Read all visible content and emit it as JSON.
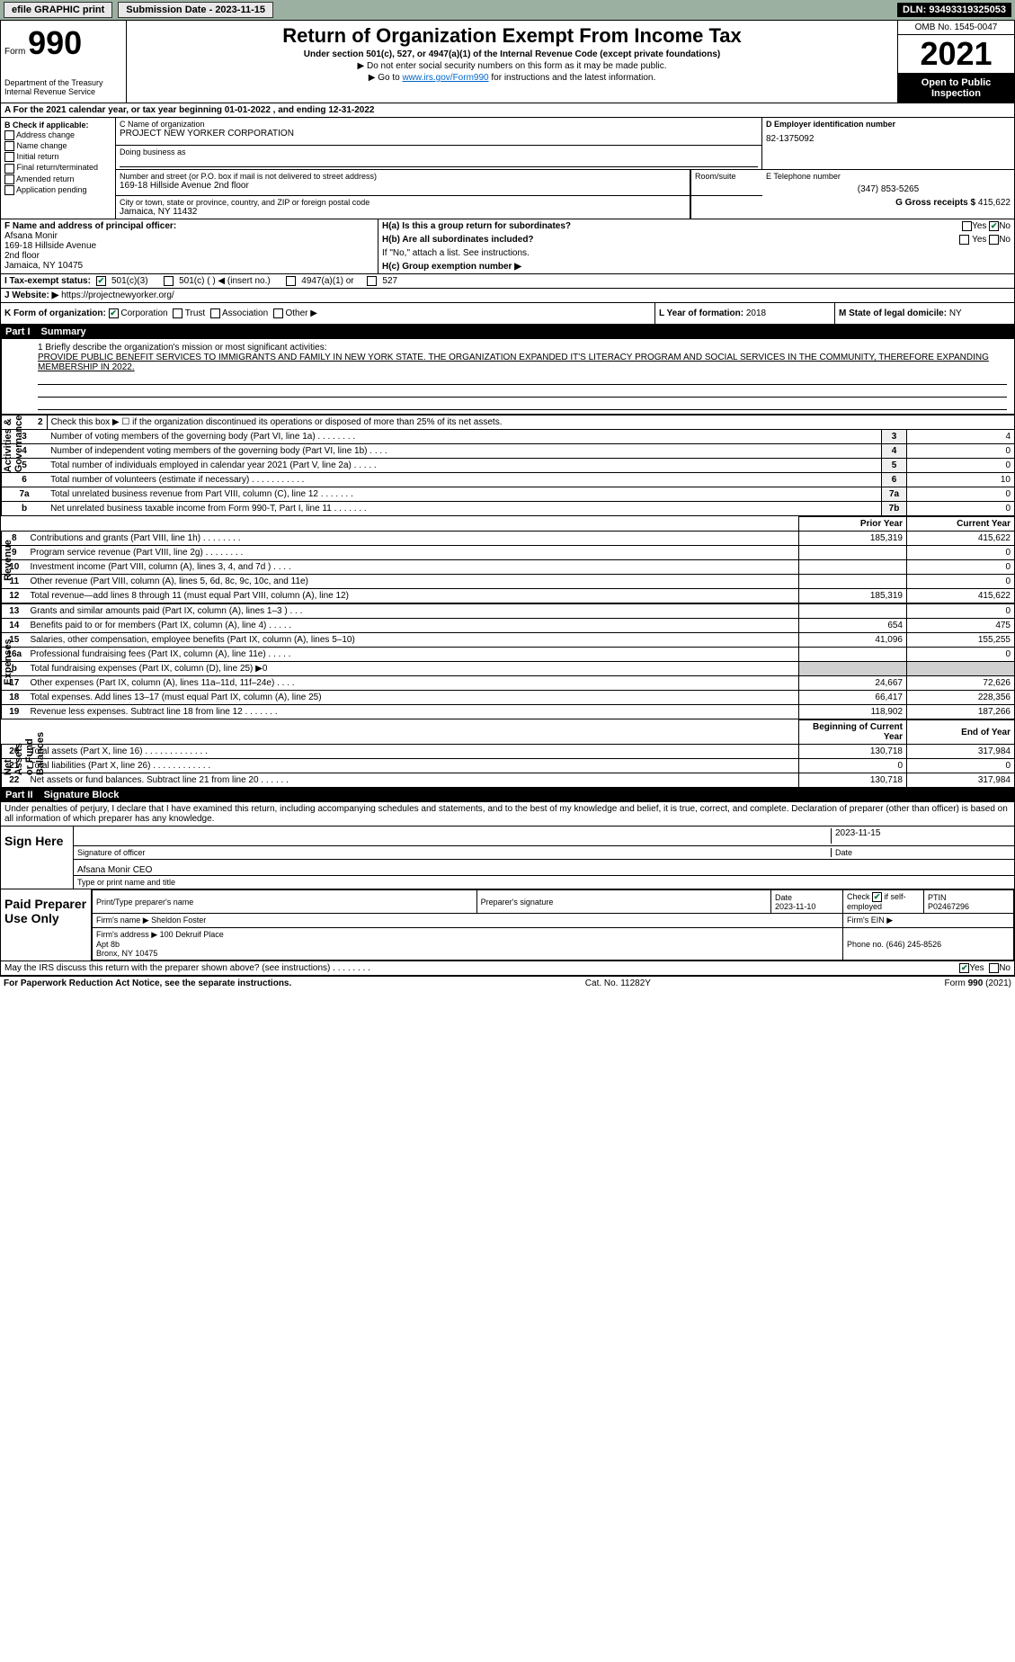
{
  "topbar": {
    "efile": "efile GRAPHIC print",
    "subdate_lbl": "Submission Date - 2023-11-15",
    "dln": "DLN: 93493319325053"
  },
  "header": {
    "form_prefix": "Form",
    "form_no": "990",
    "title": "Return of Organization Exempt From Income Tax",
    "sub": "Under section 501(c), 527, or 4947(a)(1) of the Internal Revenue Code (except private foundations)",
    "note1": "▶ Do not enter social security numbers on this form as it may be made public.",
    "note2_pre": "▶ Go to ",
    "note2_link": "www.irs.gov/Form990",
    "note2_post": " for instructions and the latest information.",
    "omb": "OMB No. 1545-0047",
    "year": "2021",
    "open": "Open to Public Inspection",
    "dept": "Department of the Treasury\nInternal Revenue Service"
  },
  "row_a": "A For the 2021 calendar year, or tax year beginning 01-01-2022    , and ending 12-31-2022",
  "col_b": {
    "hdr": "B Check if applicable:",
    "items": [
      "Address change",
      "Name change",
      "Initial return",
      "Final return/terminated",
      "Amended return",
      "Application pending"
    ]
  },
  "c": {
    "name_lbl": "C Name of organization",
    "name": "PROJECT NEW YORKER CORPORATION",
    "dba_lbl": "Doing business as",
    "dba": "",
    "street_lbl": "Number and street (or P.O. box if mail is not delivered to street address)",
    "street": "169-18 Hillside Avenue 2nd floor",
    "room_lbl": "Room/suite",
    "city_lbl": "City or town, state or province, country, and ZIP or foreign postal code",
    "city": "Jamaica, NY  11432"
  },
  "d": {
    "lbl": "D Employer identification number",
    "val": "82-1375092"
  },
  "e": {
    "lbl": "E Telephone number",
    "val": "(347) 853-5265"
  },
  "g": {
    "lbl": "G Gross receipts $",
    "val": "415,622"
  },
  "f": {
    "lbl": "F  Name and address of principal officer:",
    "name": "Afsana Monir",
    "addr1": "169-18 Hillside Avenue",
    "addr2": "2nd floor",
    "addr3": "Jamaica, NY  10475"
  },
  "h": {
    "a_lbl": "H(a)  Is this a group return for subordinates?",
    "b_lbl": "H(b)  Are all subordinates included?",
    "note": "If \"No,\" attach a list. See instructions.",
    "c_lbl": "H(c)  Group exemption number ▶",
    "yes": "Yes",
    "no": "No"
  },
  "i": {
    "lbl": "I    Tax-exempt status:",
    "opts": [
      "501(c)(3)",
      "501(c) (   ) ◀ (insert no.)",
      "4947(a)(1) or",
      "527"
    ]
  },
  "j": {
    "lbl": "J   Website: ▶",
    "val": "https://projectnewyorker.org/"
  },
  "k": {
    "lbl": "K Form of organization:",
    "opts": [
      "Corporation",
      "Trust",
      "Association",
      "Other ▶"
    ]
  },
  "l": {
    "lbl": "L Year of formation:",
    "val": "2018"
  },
  "m": {
    "lbl": "M State of legal domicile:",
    "val": "NY"
  },
  "part1": {
    "num": "Part I",
    "title": "Summary"
  },
  "mission": {
    "line1": "1  Briefly describe the organization's mission or most significant activities:",
    "text": "PROVIDE PUBLIC BENEFIT SERVICES TO IMMIGRANTS AND FAMILY IN NEW YORK STATE. THE ORGANIZATION EXPANDED IT'S LITERACY PROGRAM AND SOCIAL SERVICES IN THE COMMUNITY, THEREFORE EXPANDING MEMBERSHIP IN 2022."
  },
  "vlabels": {
    "gov": "Activities & Governance",
    "rev": "Revenue",
    "exp": "Expenses",
    "net": "Net Assets or Fund Balances"
  },
  "gov_rows": [
    {
      "n": "2",
      "d": "Check this box ▶ ☐  if the organization discontinued its operations or disposed of more than 25% of its net assets.",
      "box": "",
      "val": ""
    },
    {
      "n": "3",
      "d": "Number of voting members of the governing body (Part VI, line 1a)   .    .    .    .    .    .    .    .",
      "box": "3",
      "val": "4"
    },
    {
      "n": "4",
      "d": "Number of independent voting members of the governing body (Part VI, line 1b)    .    .    .    .",
      "box": "4",
      "val": "0"
    },
    {
      "n": "5",
      "d": "Total number of individuals employed in calendar year 2021 (Part V, line 2a)   .    .    .    .    .",
      "box": "5",
      "val": "0"
    },
    {
      "n": "6",
      "d": "Total number of volunteers (estimate if necessary)    .    .    .    .    .    .    .    .    .    .    .",
      "box": "6",
      "val": "10"
    },
    {
      "n": "7a",
      "d": "Total unrelated business revenue from Part VIII, column (C), line 12   .    .    .    .    .    .    .",
      "box": "7a",
      "val": "0"
    },
    {
      "n": "b",
      "d": "Net unrelated business taxable income from Form 990-T, Part I, line 11   .    .    .    .    .    .    .",
      "box": "7b",
      "val": "0"
    }
  ],
  "py_hdr": "Prior Year",
  "cy_hdr": "Current Year",
  "rev_rows": [
    {
      "n": "8",
      "d": "Contributions and grants (Part VIII, line 1h)   .    .    .    .    .    .    .    .",
      "py": "185,319",
      "cy": "415,622"
    },
    {
      "n": "9",
      "d": "Program service revenue (Part VIII, line 2g)   .    .    .    .    .    .    .    .",
      "py": "",
      "cy": "0"
    },
    {
      "n": "10",
      "d": "Investment income (Part VIII, column (A), lines 3, 4, and 7d )   .    .    .    .",
      "py": "",
      "cy": "0"
    },
    {
      "n": "11",
      "d": "Other revenue (Part VIII, column (A), lines 5, 6d, 8c, 9c, 10c, and 11e)",
      "py": "",
      "cy": "0"
    },
    {
      "n": "12",
      "d": "Total revenue—add lines 8 through 11 (must equal Part VIII, column (A), line 12)",
      "py": "185,319",
      "cy": "415,622"
    }
  ],
  "exp_rows": [
    {
      "n": "13",
      "d": "Grants and similar amounts paid (Part IX, column (A), lines 1–3 )   .    .    .",
      "py": "",
      "cy": "0"
    },
    {
      "n": "14",
      "d": "Benefits paid to or for members (Part IX, column (A), line 4)   .    .    .    .    .",
      "py": "654",
      "cy": "475"
    },
    {
      "n": "15",
      "d": "Salaries, other compensation, employee benefits (Part IX, column (A), lines 5–10)",
      "py": "41,096",
      "cy": "155,255"
    },
    {
      "n": "16a",
      "d": "Professional fundraising fees (Part IX, column (A), line 11e)   .    .    .    .    .",
      "py": "",
      "cy": "0"
    },
    {
      "n": "b",
      "d": "Total fundraising expenses (Part IX, column (D), line 25) ▶0",
      "py": "SHADE",
      "cy": "SHADE"
    },
    {
      "n": "17",
      "d": "Other expenses (Part IX, column (A), lines 11a–11d, 11f–24e)   .    .    .    .",
      "py": "24,667",
      "cy": "72,626"
    },
    {
      "n": "18",
      "d": "Total expenses. Add lines 13–17 (must equal Part IX, column (A), line 25)",
      "py": "66,417",
      "cy": "228,356"
    },
    {
      "n": "19",
      "d": "Revenue less expenses. Subtract line 18 from line 12   .    .    .    .    .    .    .",
      "py": "118,902",
      "cy": "187,266"
    }
  ],
  "by_hdr": "Beginning of Current Year",
  "ey_hdr": "End of Year",
  "net_rows": [
    {
      "n": "20",
      "d": "Total assets (Part X, line 16)   .    .    .    .    .    .    .    .    .    .    .    .    .",
      "py": "130,718",
      "cy": "317,984"
    },
    {
      "n": "21",
      "d": "Total liabilities (Part X, line 26)    .    .    .    .    .    .    .    .    .    .    .    .",
      "py": "0",
      "cy": "0"
    },
    {
      "n": "22",
      "d": "Net assets or fund balances. Subtract line 21 from line 20   .    .    .    .    .    .",
      "py": "130,718",
      "cy": "317,984"
    }
  ],
  "part2": {
    "num": "Part II",
    "title": "Signature Block"
  },
  "sig": {
    "decl": "Under penalties of perjury, I declare that I have examined this return, including accompanying schedules and statements, and to the best of my knowledge and belief, it is true, correct, and complete. Declaration of preparer (other than officer) is based on all information of which preparer has any knowledge.",
    "sign_here": "Sign Here",
    "sig_officer": "Signature of officer",
    "date": "Date",
    "date_val": "2023-11-15",
    "name": "Afsana Monir CEO",
    "type_print": "Type or print name and title"
  },
  "prep": {
    "label": "Paid Preparer Use Only",
    "hdr": [
      "Print/Type preparer's name",
      "Preparer's signature",
      "Date",
      "Check ☑ if self-employed",
      "PTIN"
    ],
    "date": "2023-11-10",
    "ptin": "P02467296",
    "firm_lbl": "Firm's name    ▶",
    "firm": "Sheldon Foster",
    "ein_lbl": "Firm's EIN ▶",
    "addr_lbl": "Firm's address ▶",
    "addr": "100 Dekruif Place\nApt 8b\nBronx, NY  10475",
    "phone_lbl": "Phone no.",
    "phone": "(646) 245-8526"
  },
  "may": {
    "q": "May the IRS discuss this return with the preparer shown above? (see instructions)   .    .    .    .    .    .    .    .",
    "yes": "Yes",
    "no": "No"
  },
  "footer": {
    "left": "For Paperwork Reduction Act Notice, see the separate instructions.",
    "mid": "Cat. No. 11282Y",
    "right": "Form 990 (2021)"
  }
}
